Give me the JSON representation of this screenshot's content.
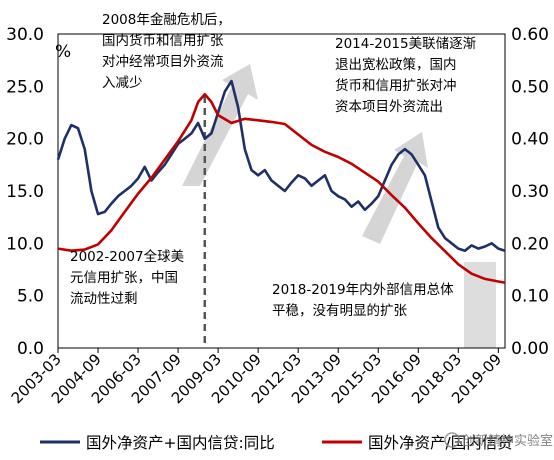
{
  "chart_data": {
    "type": "line",
    "left_axis": {
      "ticks": [
        "0.0",
        "5.0",
        "10.0",
        "15.0",
        "20.0",
        "25.0",
        "30.0"
      ],
      "unit": "%",
      "ylim": [
        0,
        30
      ]
    },
    "right_axis": {
      "ticks": [
        "0.00",
        "0.10",
        "0.20",
        "0.30",
        "0.40",
        "0.50",
        "0.60"
      ],
      "ylim": [
        0,
        0.6
      ]
    },
    "x_ticks": [
      "2003-03",
      "2004-09",
      "2006-03",
      "2007-09",
      "2009-03",
      "2010-09",
      "2012-03",
      "2013-09",
      "2015-03",
      "2016-09",
      "2018-03",
      "2019-09"
    ],
    "x_range": [
      "2003-03",
      "2019-12"
    ],
    "vertical_marker": "2008-09",
    "series": [
      {
        "name": "国外净资产+国内信贷:同比",
        "axis": "left",
        "color": "#1f3068",
        "points": [
          [
            "2003-03",
            18.0
          ],
          [
            "2003-06",
            20.0
          ],
          [
            "2003-09",
            21.3
          ],
          [
            "2003-12",
            21.0
          ],
          [
            "2004-03",
            19.0
          ],
          [
            "2004-06",
            15.0
          ],
          [
            "2004-09",
            12.8
          ],
          [
            "2004-12",
            13.0
          ],
          [
            "2005-03",
            13.8
          ],
          [
            "2005-06",
            14.5
          ],
          [
            "2005-09",
            15.0
          ],
          [
            "2005-12",
            15.5
          ],
          [
            "2006-03",
            16.2
          ],
          [
            "2006-06",
            17.3
          ],
          [
            "2006-09",
            16.0
          ],
          [
            "2006-12",
            16.8
          ],
          [
            "2007-03",
            17.5
          ],
          [
            "2007-06",
            18.5
          ],
          [
            "2007-09",
            19.5
          ],
          [
            "2007-12",
            20.0
          ],
          [
            "2008-03",
            20.5
          ],
          [
            "2008-06",
            21.5
          ],
          [
            "2008-09",
            20.0
          ],
          [
            "2008-12",
            20.5
          ],
          [
            "2009-03",
            22.5
          ],
          [
            "2009-06",
            24.5
          ],
          [
            "2009-09",
            25.5
          ],
          [
            "2009-12",
            23.0
          ],
          [
            "2010-03",
            19.0
          ],
          [
            "2010-06",
            17.0
          ],
          [
            "2010-09",
            16.5
          ],
          [
            "2010-12",
            17.0
          ],
          [
            "2011-03",
            16.0
          ],
          [
            "2011-06",
            15.5
          ],
          [
            "2011-09",
            15.0
          ],
          [
            "2011-12",
            15.8
          ],
          [
            "2012-03",
            16.5
          ],
          [
            "2012-06",
            16.2
          ],
          [
            "2012-09",
            15.5
          ],
          [
            "2012-12",
            16.0
          ],
          [
            "2013-03",
            16.5
          ],
          [
            "2013-06",
            15.0
          ],
          [
            "2013-09",
            14.5
          ],
          [
            "2013-12",
            14.2
          ],
          [
            "2014-03",
            13.5
          ],
          [
            "2014-06",
            14.0
          ],
          [
            "2014-09",
            13.2
          ],
          [
            "2014-12",
            13.8
          ],
          [
            "2015-03",
            14.5
          ],
          [
            "2015-06",
            16.0
          ],
          [
            "2015-09",
            17.5
          ],
          [
            "2015-12",
            18.5
          ],
          [
            "2016-03",
            19.0
          ],
          [
            "2016-06",
            18.5
          ],
          [
            "2016-09",
            17.5
          ],
          [
            "2016-12",
            16.5
          ],
          [
            "2017-03",
            14.0
          ],
          [
            "2017-06",
            11.5
          ],
          [
            "2017-09",
            10.5
          ],
          [
            "2017-12",
            10.0
          ],
          [
            "2018-03",
            9.5
          ],
          [
            "2018-06",
            9.3
          ],
          [
            "2018-09",
            9.8
          ],
          [
            "2018-12",
            9.5
          ],
          [
            "2019-03",
            9.7
          ],
          [
            "2019-06",
            10.0
          ],
          [
            "2019-09",
            9.5
          ],
          [
            "2019-12",
            9.3
          ]
        ]
      },
      {
        "name": "国外净资产/国内信贷",
        "axis": "right",
        "color": "#c00000",
        "points": [
          [
            "2003-03",
            0.19
          ],
          [
            "2003-09",
            0.186
          ],
          [
            "2004-03",
            0.188
          ],
          [
            "2004-09",
            0.198
          ],
          [
            "2005-03",
            0.225
          ],
          [
            "2005-09",
            0.26
          ],
          [
            "2006-03",
            0.295
          ],
          [
            "2006-09",
            0.325
          ],
          [
            "2007-03",
            0.36
          ],
          [
            "2007-09",
            0.395
          ],
          [
            "2008-03",
            0.435
          ],
          [
            "2008-06",
            0.47
          ],
          [
            "2008-09",
            0.485
          ],
          [
            "2008-12",
            0.47
          ],
          [
            "2009-03",
            0.445
          ],
          [
            "2009-09",
            0.43
          ],
          [
            "2010-03",
            0.438
          ],
          [
            "2010-09",
            0.435
          ],
          [
            "2011-03",
            0.432
          ],
          [
            "2011-09",
            0.428
          ],
          [
            "2012-03",
            0.408
          ],
          [
            "2012-09",
            0.388
          ],
          [
            "2013-03",
            0.375
          ],
          [
            "2013-09",
            0.365
          ],
          [
            "2014-03",
            0.352
          ],
          [
            "2014-09",
            0.335
          ],
          [
            "2015-03",
            0.318
          ],
          [
            "2015-09",
            0.292
          ],
          [
            "2016-03",
            0.268
          ],
          [
            "2016-09",
            0.238
          ],
          [
            "2017-03",
            0.21
          ],
          [
            "2017-09",
            0.185
          ],
          [
            "2018-03",
            0.16
          ],
          [
            "2018-09",
            0.142
          ],
          [
            "2019-03",
            0.132
          ],
          [
            "2019-09",
            0.127
          ],
          [
            "2019-12",
            0.125
          ]
        ]
      }
    ],
    "annotations": [
      {
        "lines": [
          "2008年金融危机后，",
          "国内货币和信用扩张",
          "对冲经常项目外资流",
          "入减少"
        ]
      },
      {
        "lines": [
          "2014-2015美联储逐渐",
          "退出宽松政策，国内",
          "货币和信用扩张对冲",
          "资本项目外资流出"
        ]
      },
      {
        "lines": [
          "2002-2007全球美",
          "元信用扩张，中国",
          "流动性过剩"
        ]
      },
      {
        "lines": [
          "2018-2019年内外部信用总体",
          "平稳，没有明显的扩张"
        ]
      }
    ],
    "legend": {
      "placement": "bottom",
      "items": [
        "国外净资产+国内信贷:同比",
        "国外净资产/国内信贷"
      ]
    },
    "watermark": "创新精神实验室"
  }
}
